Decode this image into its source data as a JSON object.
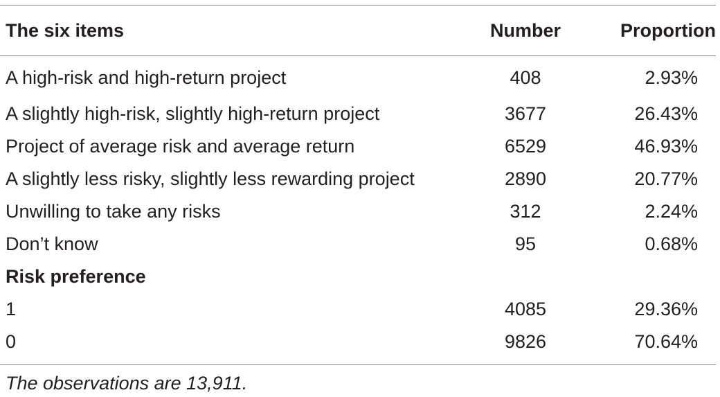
{
  "table": {
    "headers": {
      "label": "The six items",
      "number": "Number",
      "proportion": "Proportion"
    },
    "rows": [
      {
        "label": "A high-risk and high-return project",
        "number": "408",
        "proportion": "2.93%"
      },
      {
        "label": "A slightly high-risk, slightly high-return project",
        "number": "3677",
        "proportion": "26.43%"
      },
      {
        "label": "Project of average risk and average return",
        "number": "6529",
        "proportion": "46.93%"
      },
      {
        "label": "A slightly less risky, slightly less rewarding project",
        "number": "2890",
        "proportion": "20.77%"
      },
      {
        "label": "Unwilling to take any risks",
        "number": "312",
        "proportion": "2.24%"
      },
      {
        "label": "Don’t know",
        "number": "95",
        "proportion": "0.68%"
      }
    ],
    "section": {
      "title": "Risk preference",
      "rows": [
        {
          "label": "1",
          "number": "4085",
          "proportion": "29.36%"
        },
        {
          "label": "0",
          "number": "9826",
          "proportion": "70.64%"
        }
      ]
    },
    "footnote": "The observations are 13,911."
  }
}
